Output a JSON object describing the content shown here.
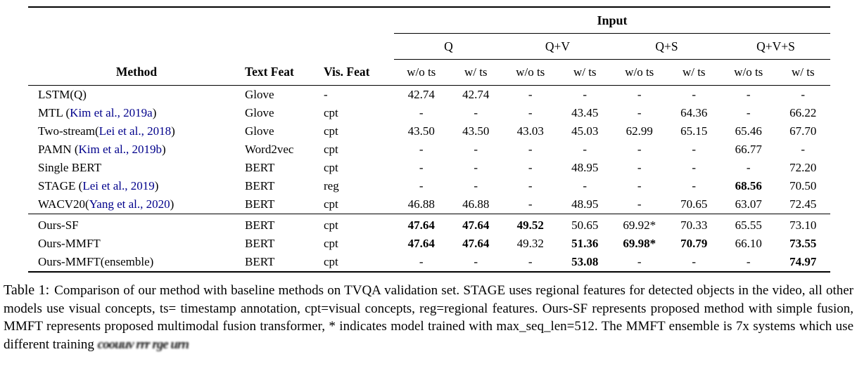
{
  "colors": {
    "citation": "#00008B",
    "text": "#000000",
    "rule": "#000000"
  },
  "table": {
    "header": {
      "input_label": "Input",
      "method": "Method",
      "text_feat": "Text Feat",
      "vis_feat": "Vis. Feat",
      "groups": [
        "Q",
        "Q+V",
        "Q+S",
        "Q+V+S"
      ],
      "sub_wo": "w/o ts",
      "sub_w": "w/ ts"
    },
    "rows": [
      {
        "section": "baseline",
        "method_pre": "LSTM(Q)",
        "cite": null,
        "method_post": "",
        "text_feat": "Glove",
        "vis_feat": "-",
        "values": [
          "42.74",
          "42.74",
          "-",
          "-",
          "-",
          "-",
          "-",
          "-"
        ],
        "bold": []
      },
      {
        "section": "baseline",
        "method_pre": "MTL (",
        "cite": "Kim et al., 2019a",
        "method_post": ")",
        "text_feat": "Glove",
        "vis_feat": "cpt",
        "values": [
          "-",
          "-",
          "-",
          "43.45",
          "-",
          "64.36",
          "-",
          "66.22"
        ],
        "bold": []
      },
      {
        "section": "baseline",
        "method_pre": "Two-stream(",
        "cite": "Lei et al., 2018",
        "method_post": ")",
        "text_feat": "Glove",
        "vis_feat": "cpt",
        "values": [
          "43.50",
          "43.50",
          "43.03",
          "45.03",
          "62.99",
          "65.15",
          "65.46",
          "67.70"
        ],
        "bold": []
      },
      {
        "section": "baseline",
        "method_pre": "PAMN (",
        "cite": "Kim et al., 2019b",
        "method_post": ")",
        "text_feat": "Word2vec",
        "vis_feat": "cpt",
        "values": [
          "-",
          "-",
          "-",
          "-",
          "-",
          "-",
          "66.77",
          "-"
        ],
        "bold": []
      },
      {
        "section": "baseline",
        "method_pre": "Single BERT",
        "cite": null,
        "method_post": "",
        "text_feat": "BERT",
        "vis_feat": "cpt",
        "values": [
          "-",
          "-",
          "-",
          "48.95",
          "-",
          "-",
          "-",
          "72.20"
        ],
        "bold": []
      },
      {
        "section": "baseline",
        "method_pre": "STAGE (",
        "cite": "Lei et al., 2019",
        "method_post": ")",
        "text_feat": "BERT",
        "vis_feat": "reg",
        "values": [
          "-",
          "-",
          "-",
          "-",
          "-",
          "-",
          "68.56",
          "70.50"
        ],
        "bold": [
          6
        ]
      },
      {
        "section": "baseline",
        "method_pre": "WACV20(",
        "cite": "Yang et al., 2020",
        "method_post": ")",
        "text_feat": "BERT",
        "vis_feat": "cpt",
        "values": [
          "46.88",
          "46.88",
          "-",
          "48.95",
          "-",
          "70.65",
          "63.07",
          "72.45"
        ],
        "bold": []
      },
      {
        "section": "ours",
        "section_start": true,
        "method_pre": "Ours-SF",
        "cite": null,
        "method_post": "",
        "text_feat": "BERT",
        "vis_feat": "cpt",
        "values": [
          "47.64",
          "47.64",
          "49.52",
          "50.65",
          "69.92*",
          "70.33",
          "65.55",
          "73.10"
        ],
        "bold": [
          0,
          1,
          2
        ]
      },
      {
        "section": "ours",
        "method_pre": "Ours-MMFT",
        "cite": null,
        "method_post": "",
        "text_feat": "BERT",
        "vis_feat": "cpt",
        "values": [
          "47.64",
          "47.64",
          "49.32",
          "51.36",
          "69.98*",
          "70.79",
          "66.10",
          "73.55"
        ],
        "bold": [
          0,
          1,
          3,
          4,
          5,
          7
        ]
      },
      {
        "section": "ours",
        "method_pre": "Ours-MMFT(ensemble)",
        "cite": null,
        "method_post": "",
        "text_feat": "BERT",
        "vis_feat": "cpt",
        "values": [
          "-",
          "-",
          "-",
          "53.08",
          "-",
          "-",
          "-",
          "74.97"
        ],
        "bold": [
          3,
          7
        ]
      }
    ]
  },
  "caption": {
    "label": "Table 1:",
    "text": "Comparison of our method with baseline methods on TVQA validation set. STAGE uses regional features for detected objects in the video, all other models use visual concepts, ts= timestamp annotation, cpt=visual concepts, reg=regional features. Ours-SF represents proposed method with simple fusion, MMFT represents proposed multimodal fusion transformer, * indicates model trained with max_seq_len=512. The MMFT ensemble is 7x systems which use different training",
    "garbled_tail": "coouuv rrr  rge  urn"
  }
}
